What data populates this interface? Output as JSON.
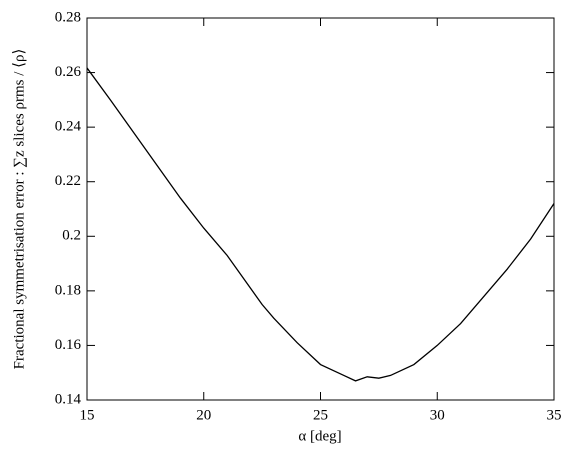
{
  "chart_data": {
    "type": "line",
    "xlabel": "α [deg]",
    "ylabel": "Fractional symmetrisation error : ∑z slices ρrms / ⟨ρ⟩",
    "x": [
      15,
      16,
      17,
      18,
      19,
      20,
      21,
      22,
      22.5,
      23,
      24,
      25,
      26,
      26.5,
      27,
      27.5,
      28,
      29,
      30,
      31,
      32.5,
      33,
      34,
      35
    ],
    "series": [
      {
        "color": "#000000",
        "values": [
          0.2617,
          0.25,
          0.238,
          0.226,
          0.214,
          0.203,
          0.193,
          0.181,
          0.175,
          0.17,
          0.161,
          0.153,
          0.149,
          0.147,
          0.1485,
          0.148,
          0.149,
          0.153,
          0.16,
          0.168,
          0.183,
          0.188,
          0.199,
          0.212
        ]
      }
    ],
    "xlim": [
      15,
      35
    ],
    "xticks": [
      15,
      20,
      25,
      30,
      35
    ],
    "ylim": [
      0.14,
      0.28
    ],
    "yticks": [
      0.14,
      0.16,
      0.18,
      0.2,
      0.22,
      0.24,
      0.26,
      0.28
    ],
    "grid": false
  }
}
